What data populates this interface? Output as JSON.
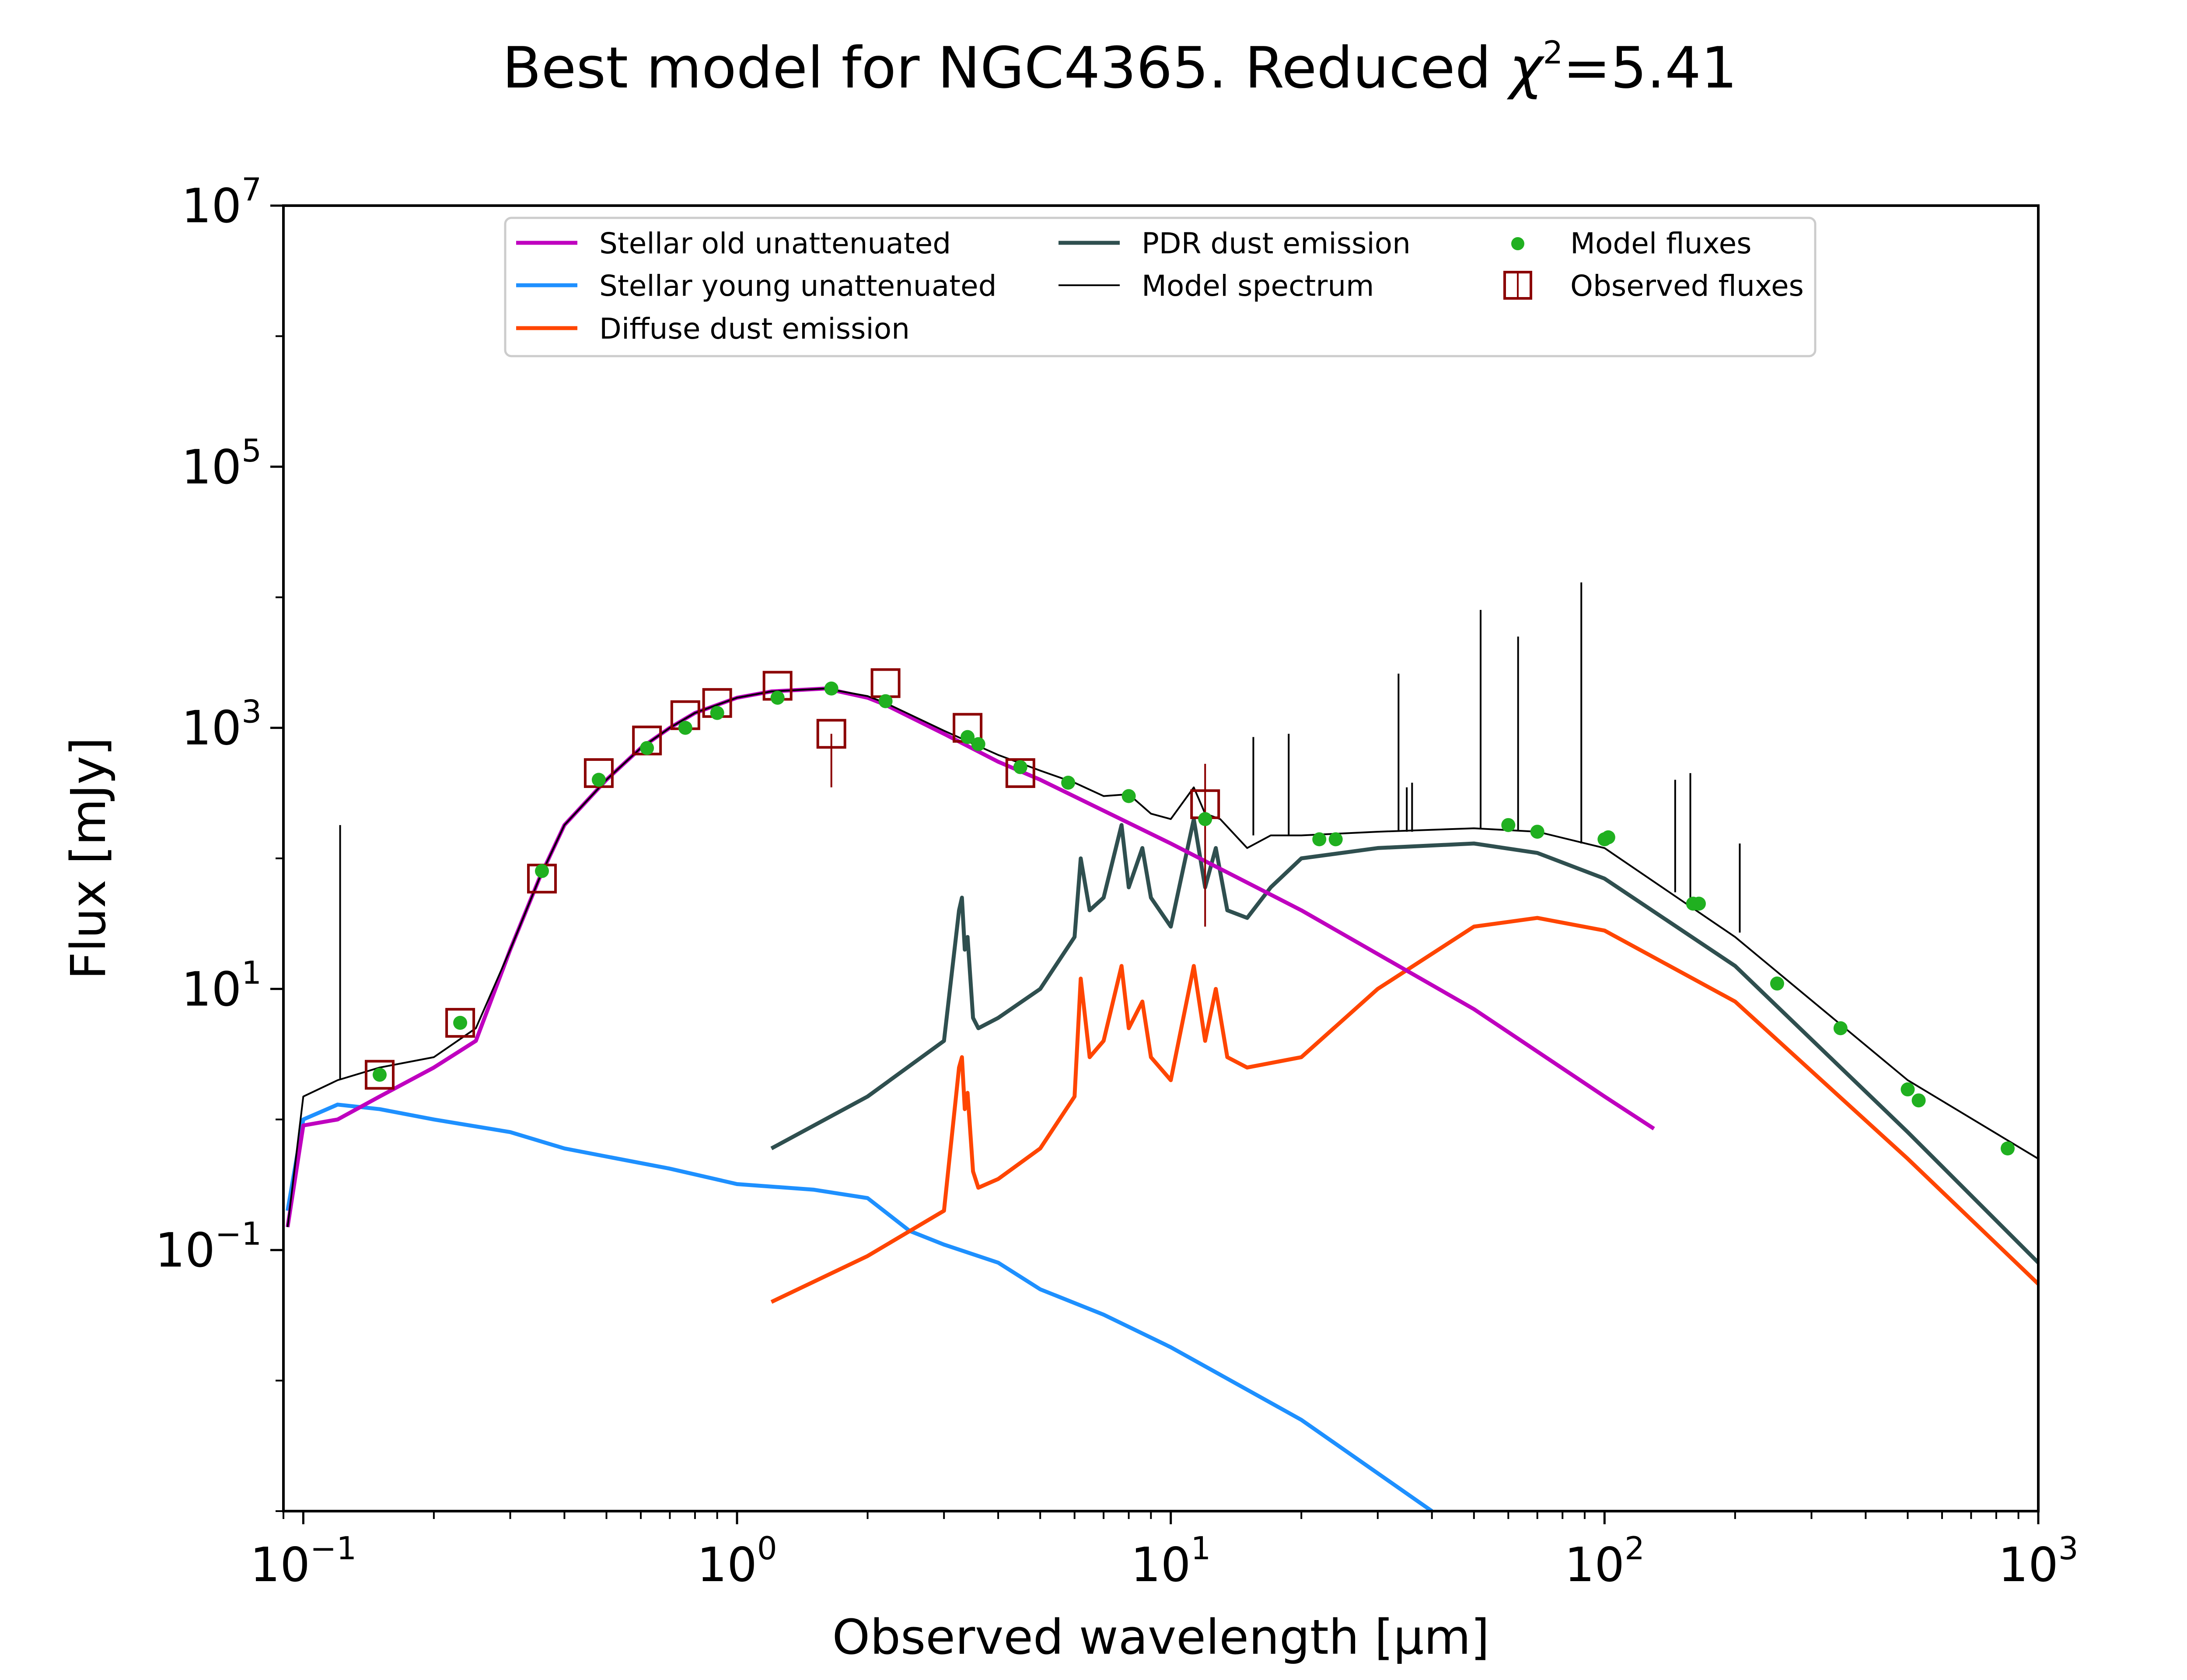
{
  "figure": {
    "title": "Best model for NGC4365. Reduced χ²=5.41",
    "title_main": "Best model for NGC4365. Reduced ",
    "title_chi": "χ",
    "title_sup": "2",
    "title_value": "=5.41"
  },
  "chart_data": {
    "type": "line",
    "title": "Best model for NGC4365. Reduced χ²=5.41",
    "xlabel": "Observed wavelength [μm]",
    "ylabel": "Flux [mJy]",
    "xscale": "log",
    "yscale": "log",
    "xlim": [
      0.09,
      1000
    ],
    "ylim": [
      0.001,
      10000000
    ],
    "x_ticks": [
      {
        "value": 0.1,
        "base": "10",
        "exp": "−1"
      },
      {
        "value": 1,
        "base": "10",
        "exp": "0"
      },
      {
        "value": 10,
        "base": "10",
        "exp": "1"
      },
      {
        "value": 100,
        "base": "10",
        "exp": "2"
      },
      {
        "value": 1000,
        "base": "10",
        "exp": "3"
      }
    ],
    "y_ticks": [
      {
        "value": 0.1,
        "base": "10",
        "exp": "−1"
      },
      {
        "value": 10,
        "base": "10",
        "exp": "1"
      },
      {
        "value": 1000,
        "base": "10",
        "exp": "3"
      },
      {
        "value": 100000,
        "base": "10",
        "exp": "5"
      },
      {
        "value": 10000000,
        "base": "10",
        "exp": "7"
      }
    ],
    "grid": false,
    "legend_position": "top",
    "series": [
      {
        "name": "Stellar old unattenuated",
        "color": "#bf00bf",
        "style": "line",
        "x": [
          0.092,
          0.1,
          0.12,
          0.15,
          0.2,
          0.25,
          0.3,
          0.35,
          0.4,
          0.5,
          0.6,
          0.7,
          0.8,
          1.0,
          1.2,
          1.6,
          2.0,
          2.2,
          3.0,
          4.0,
          5.0,
          10,
          20,
          50,
          100,
          130
        ],
        "y": [
          0.15,
          0.9,
          1.0,
          1.5,
          2.5,
          4.0,
          20,
          70,
          180,
          400,
          700,
          1000,
          1300,
          1700,
          1900,
          2000,
          1700,
          1500,
          900,
          550,
          400,
          130,
          40,
          7,
          1.5,
          0.85
        ]
      },
      {
        "name": "Stellar young unattenuated",
        "color": "#1e90ff",
        "style": "line",
        "x": [
          0.092,
          0.1,
          0.12,
          0.15,
          0.2,
          0.3,
          0.4,
          0.5,
          0.7,
          1.0,
          1.5,
          2.0,
          2.5,
          3.0,
          4.0,
          5.0,
          7.0,
          10,
          20,
          40
        ],
        "y": [
          0.2,
          1.0,
          1.3,
          1.2,
          1.0,
          0.8,
          0.6,
          0.52,
          0.42,
          0.32,
          0.29,
          0.25,
          0.14,
          0.11,
          0.08,
          0.05,
          0.032,
          0.018,
          0.005,
          0.001
        ]
      },
      {
        "name": "Diffuse dust emission",
        "color": "#ff4500",
        "style": "line",
        "x": [
          1.2,
          2.0,
          3.0,
          3.25,
          3.3,
          3.35,
          3.4,
          3.5,
          3.6,
          4.0,
          5.0,
          6.0,
          6.2,
          6.5,
          7.0,
          7.7,
          8.0,
          8.6,
          9.0,
          10.0,
          11.3,
          12.0,
          12.7,
          13.5,
          15,
          20,
          30,
          50,
          70,
          100,
          200,
          500,
          1000
        ],
        "y": [
          0.04,
          0.09,
          0.2,
          2.5,
          3.0,
          1.2,
          1.6,
          0.4,
          0.3,
          0.35,
          0.6,
          1.5,
          12,
          3.0,
          4.0,
          15,
          5.0,
          8.0,
          3.0,
          2.0,
          15,
          4.0,
          10,
          3.0,
          2.5,
          3.0,
          10,
          30,
          35,
          28,
          8,
          0.5,
          0.055
        ]
      },
      {
        "name": "PDR dust emission",
        "color": "#2f4f4f",
        "style": "line",
        "x": [
          1.2,
          2.0,
          3.0,
          3.25,
          3.3,
          3.35,
          3.4,
          3.5,
          3.6,
          4.0,
          5.0,
          6.0,
          6.2,
          6.5,
          7.0,
          7.7,
          8.0,
          8.6,
          9.0,
          10.0,
          11.3,
          12.0,
          12.7,
          13.5,
          15,
          17,
          20,
          30,
          50,
          70,
          100,
          200,
          500,
          1000
        ],
        "y": [
          0.6,
          1.5,
          4.0,
          40,
          50,
          20,
          25,
          6,
          5,
          6,
          10,
          25,
          100,
          40,
          50,
          180,
          60,
          120,
          50,
          30,
          200,
          60,
          120,
          40,
          35,
          60,
          100,
          120,
          130,
          110,
          70,
          15,
          0.8,
          0.08
        ]
      },
      {
        "name": "Model spectrum",
        "color": "#000000",
        "style": "thin",
        "x": [
          0.092,
          0.1,
          0.12,
          0.15,
          0.2,
          0.25,
          0.3,
          0.35,
          0.4,
          0.5,
          0.6,
          0.7,
          0.8,
          1.0,
          1.2,
          1.6,
          2.0,
          2.2,
          3.0,
          4.0,
          5.0,
          6.0,
          7.0,
          8.0,
          9.0,
          10.0,
          11.3,
          12.0,
          13.0,
          15.0,
          17.0,
          20,
          30,
          50,
          70,
          100,
          200,
          500,
          1000
        ],
        "y": [
          0.15,
          1.5,
          2.0,
          2.5,
          3.0,
          5.0,
          20,
          70,
          180,
          400,
          700,
          1000,
          1300,
          1700,
          1900,
          2000,
          1750,
          1550,
          950,
          620,
          470,
          380,
          300,
          310,
          220,
          200,
          350,
          220,
          200,
          120,
          150,
          150,
          160,
          170,
          160,
          120,
          25,
          2.0,
          0.5
        ]
      },
      {
        "name": "Model fluxes",
        "color": "#20b020",
        "style": "points",
        "x": [
          0.15,
          0.23,
          0.355,
          0.48,
          0.62,
          0.76,
          0.9,
          1.24,
          1.65,
          2.2,
          3.4,
          3.6,
          4.5,
          5.8,
          8.0,
          12,
          22,
          24,
          60,
          70,
          100,
          102,
          160,
          165,
          250,
          350,
          500,
          530,
          850
        ],
        "y": [
          2.2,
          5.5,
          80,
          400,
          700,
          1000,
          1300,
          1700,
          2000,
          1600,
          850,
          750,
          500,
          380,
          300,
          200,
          140,
          140,
          180,
          160,
          140,
          145,
          45,
          45,
          11,
          5,
          1.7,
          1.4,
          0.6
        ]
      },
      {
        "name": "Observed fluxes",
        "color": "#8b0000",
        "style": "squares",
        "x": [
          0.15,
          0.23,
          0.355,
          0.48,
          0.62,
          0.76,
          0.9,
          1.24,
          1.65,
          2.2,
          3.4,
          4.5,
          12
        ],
        "y": [
          2.2,
          5.5,
          70,
          450,
          800,
          1250,
          1550,
          2100,
          900,
          2200,
          1000,
          450,
          260
        ],
        "yerr_low": [
          0,
          0,
          0,
          0,
          0,
          0,
          0,
          0,
          550,
          0,
          0,
          0,
          230
        ],
        "yerr_high": [
          0,
          0,
          0,
          0,
          0,
          0,
          0,
          0,
          0,
          0,
          0,
          0,
          270
        ]
      }
    ],
    "emission_lines": [
      {
        "x": 0.1216,
        "y0": 2.0,
        "y1": 180
      },
      {
        "x": 15.5,
        "y0": 150,
        "y1": 850
      },
      {
        "x": 18.7,
        "y0": 150,
        "y1": 900
      },
      {
        "x": 33.5,
        "y0": 160,
        "y1": 2600
      },
      {
        "x": 35.0,
        "y0": 160,
        "y1": 350
      },
      {
        "x": 36.0,
        "y0": 160,
        "y1": 380
      },
      {
        "x": 51.8,
        "y0": 170,
        "y1": 8000
      },
      {
        "x": 63.2,
        "y0": 165,
        "y1": 5000
      },
      {
        "x": 88.4,
        "y0": 130,
        "y1": 13000
      },
      {
        "x": 145.5,
        "y0": 55,
        "y1": 400
      },
      {
        "x": 157.7,
        "y0": 45,
        "y1": 450
      },
      {
        "x": 205,
        "y0": 27,
        "y1": 130
      }
    ]
  },
  "legend": {
    "items": [
      {
        "label": "Stellar old unattenuated",
        "color": "#bf00bf",
        "kind": "line"
      },
      {
        "label": "Stellar young unattenuated",
        "color": "#1e90ff",
        "kind": "line"
      },
      {
        "label": "Diffuse dust emission",
        "color": "#ff4500",
        "kind": "line"
      },
      {
        "label": "PDR dust emission",
        "color": "#2f4f4f",
        "kind": "line"
      },
      {
        "label": "Model spectrum",
        "color": "#000000",
        "kind": "thin"
      },
      {
        "label": "Model fluxes",
        "color": "#20b020",
        "kind": "dot"
      },
      {
        "label": "Observed fluxes",
        "color": "#8b0000",
        "kind": "square"
      }
    ]
  }
}
